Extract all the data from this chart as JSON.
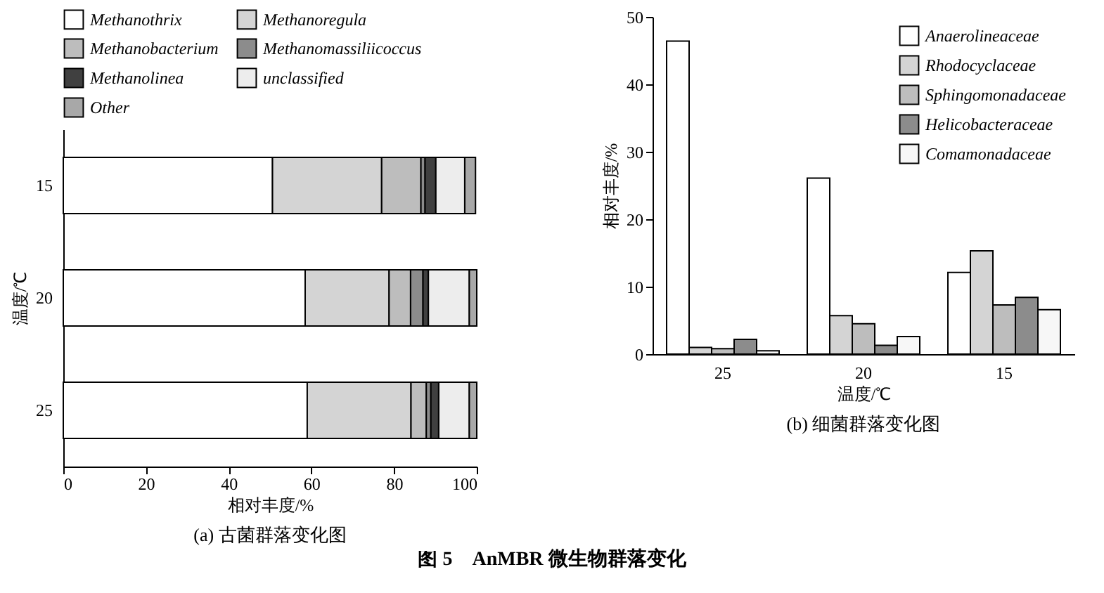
{
  "chart_data": [
    {
      "type": "bar",
      "title": "(a) 古菌群落变化图",
      "orientation": "horizontal",
      "stacked": true,
      "categories": [
        "15",
        "20",
        "25"
      ],
      "xlabel": "相对丰度/%",
      "ylabel": "温度/℃",
      "xlim": [
        0,
        100
      ],
      "xticks": [
        0,
        20,
        40,
        60,
        80,
        100
      ],
      "legend": "top",
      "series": [
        {
          "name": "Methanothrix",
          "color": "#ffffff",
          "values": [
            50.6,
            58.5,
            59.0
          ]
        },
        {
          "name": "Methanoregula",
          "color": "#d4d4d4",
          "values": [
            26.4,
            20.3,
            25.1
          ]
        },
        {
          "name": "Methanobacterium",
          "color": "#bdbdbd",
          "values": [
            9.5,
            5.2,
            3.7
          ]
        },
        {
          "name": "Methanomassiliicoccus",
          "color": "#8c8c8c",
          "values": [
            1.0,
            3.0,
            1.1
          ]
        },
        {
          "name": "Methanolinea",
          "color": "#404040",
          "values": [
            2.6,
            1.3,
            1.9
          ]
        },
        {
          "name": "unclassified",
          "color": "#ededed",
          "values": [
            7.0,
            9.9,
            7.4
          ]
        },
        {
          "name": "Other",
          "color": "#a8a8a8",
          "values": [
            2.6,
            1.8,
            1.8
          ]
        }
      ]
    },
    {
      "type": "bar",
      "title": "(b) 细菌群落变化图",
      "categories": [
        "25",
        "20",
        "15"
      ],
      "xlabel": "温度/℃",
      "ylabel": "相对丰度/%",
      "ylim": [
        0,
        50
      ],
      "yticks": [
        0,
        10,
        20,
        30,
        40,
        50
      ],
      "legend": "top right",
      "annotations": [
        "图 5　AnMBR 微生物群落变化"
      ],
      "series": [
        {
          "name": "Anaerolineaceae",
          "color": "#ffffff",
          "values": [
            46.4,
            26.1,
            12.1
          ]
        },
        {
          "name": "Rhodocyclaceae",
          "color": "#d4d4d4",
          "values": [
            1.0,
            5.7,
            15.3
          ]
        },
        {
          "name": "Sphingomonadaceae",
          "color": "#bdbdbd",
          "values": [
            0.8,
            4.5,
            7.3
          ]
        },
        {
          "name": "Helicobacteraceae",
          "color": "#8c8c8c",
          "values": [
            2.2,
            1.3,
            8.4
          ]
        },
        {
          "name": "Comamonadaceae",
          "color": "#f7f7f7",
          "values": [
            0.5,
            2.6,
            6.6
          ]
        }
      ]
    }
  ]
}
